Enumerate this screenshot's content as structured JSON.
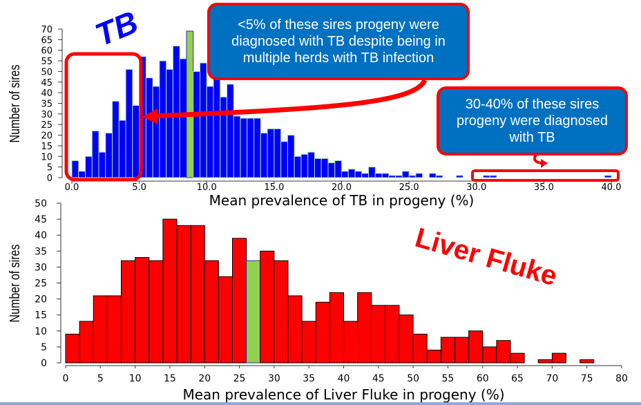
{
  "colors": {
    "tb_bar": "#0000ff",
    "fluke_bar": "#ff0000",
    "highlight": "#92d050",
    "callout_bg": "#0070c0",
    "callout_border": "#ff0000"
  },
  "annotations": {
    "tb_tag": "TB",
    "fluke_tag": "Liver Fluke",
    "callout_low": "<5% of these sires progeny were diagnosed with TB despite being in multiple herds with TB infection",
    "callout_high": "30-40% of these sires progeny were diagnosed with TB"
  },
  "chart_data": [
    {
      "type": "bar",
      "id": "tb",
      "title": "",
      "xlabel": "Mean prevalence of TB in progeny (%)",
      "ylabel": "Number of sires",
      "bin_start": 0,
      "bin_width": 0.5,
      "xlim": [
        0,
        40
      ],
      "ylim": [
        0,
        70
      ],
      "xticks": [
        "0.0",
        "5.0",
        "10.0",
        "15.0",
        "20.0",
        "25.0",
        "30.0",
        "35.0",
        "40.0"
      ],
      "yticks": [
        "0",
        "5",
        "10",
        "15",
        "20",
        "25",
        "30",
        "35",
        "40",
        "45",
        "50",
        "55",
        "60",
        "65",
        "70"
      ],
      "highlight_bin_index": 17,
      "values": [
        8,
        3,
        10,
        22,
        12,
        21,
        36,
        27,
        51,
        34,
        57,
        47,
        43,
        55,
        51,
        62,
        56,
        69,
        50,
        54,
        43,
        48,
        38,
        44,
        29,
        28,
        28,
        28,
        21,
        23,
        23,
        17,
        20,
        10,
        11,
        12,
        9,
        9,
        7,
        8,
        3,
        4,
        3,
        2,
        5,
        2,
        2,
        1,
        1,
        3,
        1,
        2,
        0,
        2,
        1,
        0,
        0,
        1,
        0,
        0,
        0,
        1,
        1,
        0,
        0,
        0,
        0,
        0,
        0,
        0,
        0,
        0,
        0,
        0,
        0,
        0,
        0,
        0,
        0,
        1
      ]
    },
    {
      "type": "bar",
      "id": "fluke",
      "title": "",
      "xlabel": "Mean prevalence of Liver Fluke in progeny (%)",
      "ylabel": "Number of sires",
      "bin_start": 0,
      "bin_width": 2,
      "xlim": [
        0,
        80
      ],
      "ylim": [
        0,
        50
      ],
      "xticks": [
        "0",
        "5",
        "10",
        "15",
        "20",
        "25",
        "30",
        "35",
        "40",
        "45",
        "50",
        "55",
        "60",
        "65",
        "70",
        "75",
        "80"
      ],
      "yticks": [
        "0",
        "5",
        "10",
        "15",
        "20",
        "25",
        "30",
        "35",
        "40",
        "45",
        "50"
      ],
      "highlight_bin_index": 13,
      "values": [
        9,
        13,
        21,
        21,
        32,
        33,
        32,
        45,
        43,
        43,
        32,
        27,
        39,
        32,
        35,
        32,
        21,
        13,
        19,
        22,
        13,
        22,
        18,
        18,
        15,
        9,
        4,
        8,
        8,
        10,
        5,
        7,
        3,
        0,
        1,
        3,
        0,
        1
      ]
    }
  ]
}
